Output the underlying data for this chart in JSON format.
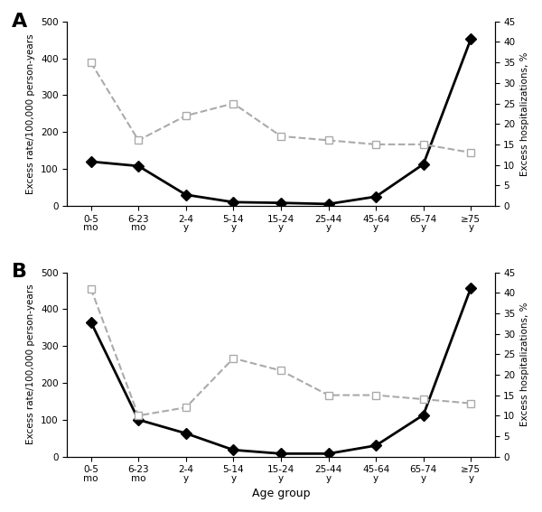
{
  "age_groups": [
    "0-5\nmo",
    "6-23\nmo",
    "2-4\ny",
    "5-14\ny",
    "15-24\ny",
    "25-44\ny",
    "45-64\ny",
    "65-74\ny",
    "≥75\ny"
  ],
  "panel_A": {
    "title": "A",
    "rate": [
      120,
      108,
      30,
      10,
      8,
      5,
      25,
      113,
      453
    ],
    "pct": [
      35,
      16,
      22,
      25,
      17,
      16,
      15,
      15,
      13
    ]
  },
  "panel_B": {
    "title": "B",
    "rate": [
      365,
      100,
      63,
      18,
      8,
      8,
      30,
      113,
      458
    ],
    "pct": [
      41,
      10,
      12,
      24,
      21,
      15,
      15,
      14,
      13
    ]
  },
  "ylim_rate": [
    0,
    500
  ],
  "ylim_pct": [
    0,
    45
  ],
  "yticks_rate": [
    0,
    100,
    200,
    300,
    400,
    500
  ],
  "yticks_pct": [
    0,
    5,
    10,
    15,
    20,
    25,
    30,
    35,
    40,
    45
  ],
  "ylabel_left": "Excess rate/100,000 person-years",
  "ylabel_right": "Excess hospitalizations, %",
  "xlabel": "Age group",
  "line_color_rate": "#000000",
  "line_color_pct": "#aaaaaa",
  "marker_rate": "D",
  "marker_pct": "s",
  "bg_color": "#ffffff",
  "figsize": [
    6.0,
    5.67
  ],
  "dpi": 100
}
